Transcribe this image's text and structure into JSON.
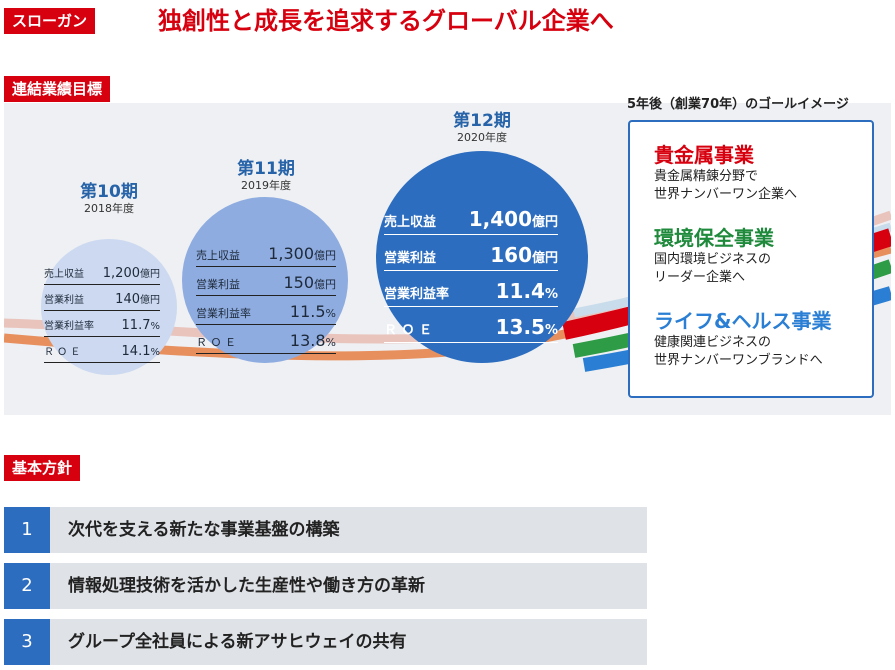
{
  "slogan": {
    "tag": "スローガン",
    "text": "独創性と成長を追求するグローバル企業へ"
  },
  "targets": {
    "tag": "連結業績目標",
    "periods": [
      {
        "period": "第10期",
        "year": "2018年度",
        "metrics": [
          {
            "label": "売上収益",
            "value": "1,200",
            "unit": "億円"
          },
          {
            "label": "営業利益",
            "value": "140",
            "unit": "億円"
          },
          {
            "label": "営業利益率",
            "value": "11.7",
            "unit": "%"
          },
          {
            "label": "Ｒ Ｏ Ｅ",
            "value": "14.1",
            "unit": "%"
          }
        ]
      },
      {
        "period": "第11期",
        "year": "2019年度",
        "metrics": [
          {
            "label": "売上収益",
            "value": "1,300",
            "unit": "億円"
          },
          {
            "label": "営業利益",
            "value": "150",
            "unit": "億円"
          },
          {
            "label": "営業利益率",
            "value": "11.5",
            "unit": "%"
          },
          {
            "label": "Ｒ Ｏ Ｅ",
            "value": "13.8",
            "unit": "%"
          }
        ]
      },
      {
        "period": "第12期",
        "year": "2020年度",
        "metrics": [
          {
            "label": "売上収益",
            "value": "1,400",
            "unit": "億円"
          },
          {
            "label": "営業利益",
            "value": "160",
            "unit": "億円"
          },
          {
            "label": "営業利益率",
            "value": "11.4",
            "unit": "%"
          },
          {
            "label": "Ｒ Ｏ Ｅ",
            "value": "13.5",
            "unit": "%"
          }
        ]
      }
    ]
  },
  "goal": {
    "title": "5年後（創業70年）のゴールイメージ",
    "businesses": [
      {
        "name": "貴金属事業",
        "lines": [
          "貴金属精錬分野で",
          "世界ナンバーワン企業へ"
        ],
        "color": "#d7000f"
      },
      {
        "name": "環境保全事業",
        "lines": [
          "国内環境ビジネスの",
          "リーダー企業へ"
        ],
        "color": "#1f8a3c"
      },
      {
        "name": "ライフ&ヘルス事業",
        "lines": [
          "健康関連ビジネスの",
          "世界ナンバーワンブランドへ"
        ],
        "color": "#2a7fd4"
      }
    ]
  },
  "policy": {
    "tag": "基本方針",
    "items": [
      {
        "num": "1",
        "text": "次代を支える新たな事業基盤の構築"
      },
      {
        "num": "2",
        "text": "情報処理技術を活かした生産性や働き方の革新"
      },
      {
        "num": "3",
        "text": "グループ全社員による新アサヒウェイの共有"
      }
    ]
  },
  "colors": {
    "red": "#d7000f",
    "blue": "#2d6dbf",
    "panel": "#eef0f3",
    "policy_row": "#dfe2e7"
  }
}
